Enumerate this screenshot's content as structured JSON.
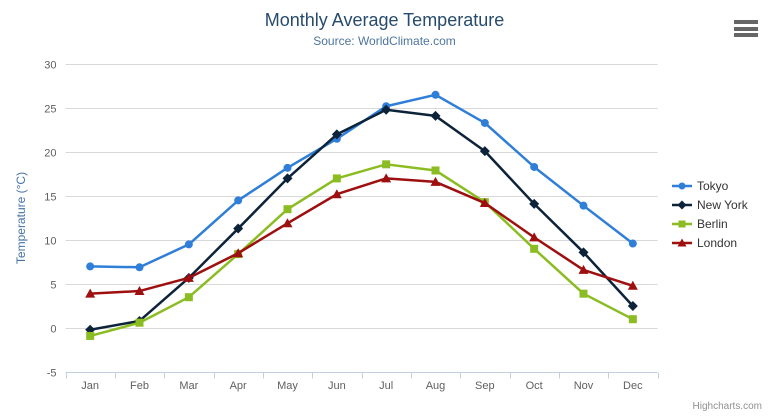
{
  "header": {
    "title": "Monthly Average Temperature",
    "subtitle": "Source: WorldClimate.com"
  },
  "icons": {
    "context_menu": "hamburger-icon"
  },
  "credits": {
    "label": "Highcharts.com"
  },
  "chart_data": {
    "type": "line",
    "title": "Monthly Average Temperature",
    "subtitle": "Source: WorldClimate.com",
    "categories": [
      "Jan",
      "Feb",
      "Mar",
      "Apr",
      "May",
      "Jun",
      "Jul",
      "Aug",
      "Sep",
      "Oct",
      "Nov",
      "Dec"
    ],
    "series": [
      {
        "name": "Tokyo",
        "color": "#2f7ed8",
        "marker": "circle",
        "values": [
          7.0,
          6.9,
          9.5,
          14.5,
          18.2,
          21.5,
          25.2,
          26.5,
          23.3,
          18.3,
          13.9,
          9.6
        ]
      },
      {
        "name": "New York",
        "color": "#0d233a",
        "marker": "diamond",
        "values": [
          -0.2,
          0.8,
          5.7,
          11.3,
          17.0,
          22.0,
          24.8,
          24.1,
          20.1,
          14.1,
          8.6,
          2.5
        ]
      },
      {
        "name": "Berlin",
        "color": "#8bbc21",
        "marker": "square",
        "values": [
          -0.9,
          0.6,
          3.5,
          8.4,
          13.5,
          17.0,
          18.6,
          17.9,
          14.3,
          9.0,
          3.9,
          1.0
        ]
      },
      {
        "name": "London",
        "color": "#9e0f0f",
        "marker": "triangle",
        "values": [
          3.9,
          4.2,
          5.7,
          8.5,
          11.9,
          15.2,
          17.0,
          16.6,
          14.2,
          10.3,
          6.6,
          4.8
        ]
      }
    ],
    "xlabel": "",
    "ylabel": "Temperature (°C)",
    "ylim": [
      -5,
      30
    ],
    "ytick_step": 5,
    "grid": true,
    "legend_position": "right",
    "colors": {
      "title": "#274b6d",
      "subtitle": "#4d759e",
      "axis_title": "#4572a7",
      "axis_labels": "#606060",
      "grid_line": "#d8d8d8",
      "axis_line": "#c0d0e0",
      "legend_text": "#333333",
      "credits_text": "#909090"
    }
  }
}
